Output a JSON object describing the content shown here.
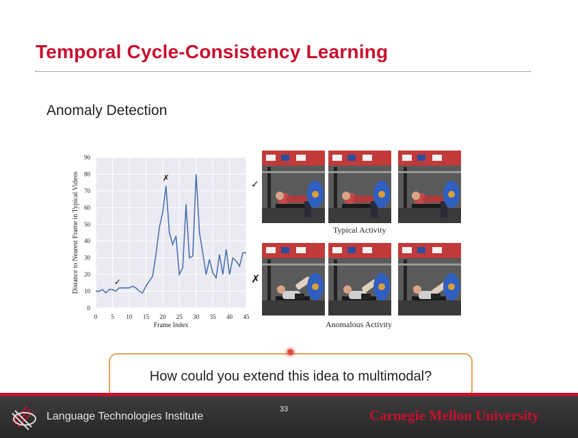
{
  "slide": {
    "title": "Temporal Cycle-Consistency Learning",
    "subtitle": "Anomaly Detection",
    "callout_text": "How could you extend this idea to multimodal?",
    "page_number": "33",
    "footer_institute": "Language Technologies Institute",
    "footer_university": "Carnegie Mellon University",
    "colors": {
      "title": "#c8102e",
      "callout_border": "#e8a060",
      "footer_bg": "#2f2f2f",
      "accent_red": "#c8102e"
    }
  },
  "chart_data": {
    "type": "line",
    "xlabel": "Frame Index",
    "ylabel": "Distance to Nearest Frame in Typical Videos",
    "xlim": [
      0,
      45
    ],
    "ylim": [
      0,
      90
    ],
    "xticks": [
      0,
      5,
      10,
      15,
      20,
      25,
      30,
      35,
      40,
      45
    ],
    "yticks": [
      0,
      10,
      20,
      30,
      40,
      50,
      60,
      70,
      80,
      90
    ],
    "grid": true,
    "x": [
      0,
      1,
      2,
      3,
      4,
      5,
      6,
      7,
      8,
      9,
      10,
      11,
      12,
      13,
      14,
      15,
      16,
      17,
      18,
      19,
      20,
      21,
      22,
      23,
      24,
      25,
      26,
      27,
      28,
      29,
      30,
      31,
      32,
      33,
      34,
      35,
      36,
      37,
      38,
      39,
      40,
      41,
      42,
      43,
      44,
      45
    ],
    "y": [
      10,
      10,
      11,
      9,
      11,
      11,
      10,
      12,
      12,
      12,
      12,
      13,
      12,
      10,
      9,
      13,
      16,
      19,
      32,
      48,
      57,
      73,
      45,
      38,
      43,
      20,
      24,
      62,
      30,
      31,
      80,
      45,
      33,
      20,
      29,
      21,
      18,
      32,
      20,
      35,
      20,
      30,
      28,
      25,
      33,
      33
    ],
    "annotations": [
      {
        "label": "✓",
        "x": 6.5,
        "y": 14
      },
      {
        "label": "✗",
        "x": 21,
        "y": 76
      }
    ]
  },
  "figures": {
    "typical_caption": "Typical Activity",
    "anomalous_caption": "Anomalous Activity",
    "typical_mark": "✓",
    "anomalous_mark": "✗"
  }
}
